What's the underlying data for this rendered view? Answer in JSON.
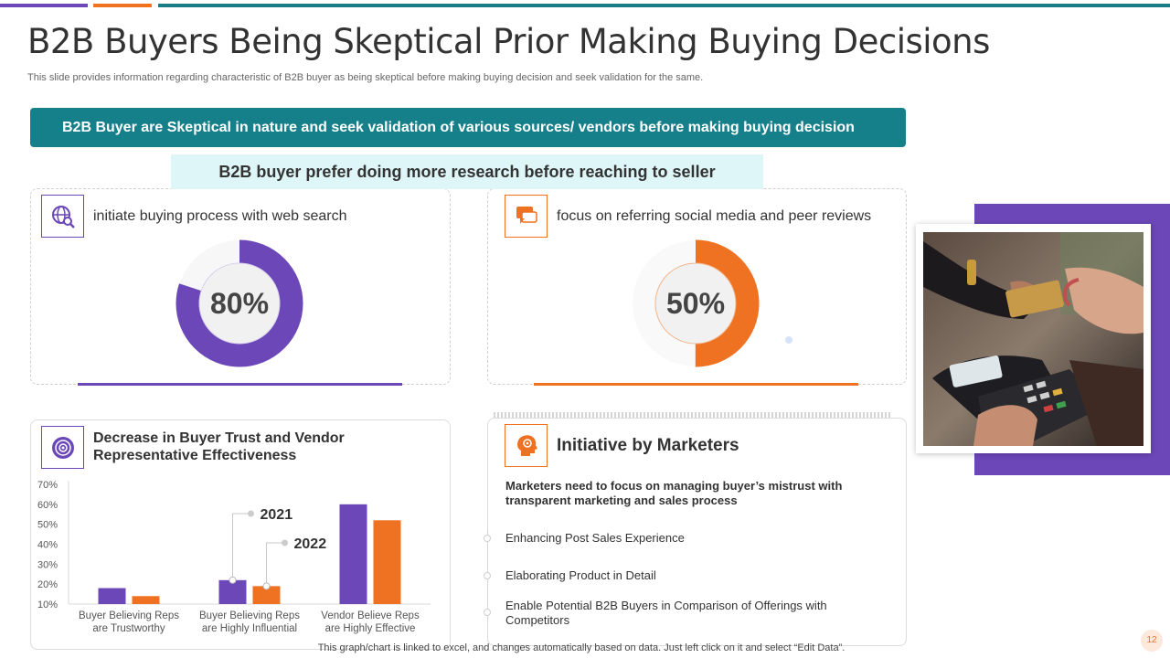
{
  "slide": {
    "title": "B2B Buyers Being Skeptical Prior Making Buying Decisions",
    "subtitle": "This slide provides information regarding characteristic of B2B buyer as being skeptical before making buying decision and seek validation for the same.",
    "banner": "B2B Buyer are Skeptical in nature and seek validation of various sources/ vendors before making buying decision",
    "sub_banner": "B2B buyer prefer doing more research before reaching to seller",
    "footer_note": "This graph/chart is linked to excel, and changes automatically based on data. Just left click on it and select “Edit Data”.",
    "page_number": "12"
  },
  "colors": {
    "purple": "#6c47b8",
    "orange": "#ef7222",
    "teal": "#16808a",
    "light_teal": "#dff6f8"
  },
  "stat_cards": [
    {
      "label": "initiate buying process with web search",
      "value_text": "80%",
      "percent": 80,
      "icon": "web-search-icon",
      "color": "#6c47b8"
    },
    {
      "label": "focus on referring social media and peer reviews",
      "value_text": "50%",
      "percent": 50,
      "icon": "chat-review-icon",
      "color": "#ef7222"
    }
  ],
  "chart_panel": {
    "heading": "Decrease in Buyer Trust and Vendor Representative  Effectiveness",
    "icon": "target-icon"
  },
  "chart_data": {
    "type": "bar",
    "title": "Decrease in Buyer Trust and Vendor Representative Effectiveness",
    "categories": [
      "Buyer Believing Reps are Trustworthy",
      "Buyer Believing Reps are Highly Influential",
      "Vendor Believe Reps are Highly Effective"
    ],
    "category_lines": [
      [
        "Buyer Believing Reps",
        "are Trustworthy"
      ],
      [
        "Buyer Believing Reps",
        "are Highly Influential"
      ],
      [
        "Vendor Believe Reps",
        "are Highly Effective"
      ]
    ],
    "series": [
      {
        "name": "2021",
        "values": [
          18,
          22,
          60
        ],
        "color": "#6c47b8"
      },
      {
        "name": "2022",
        "values": [
          14,
          19,
          52
        ],
        "color": "#ef7222"
      }
    ],
    "yticks": [
      "10%",
      "20%",
      "30%",
      "40%",
      "50%",
      "60%",
      "70%"
    ],
    "ylim": [
      10,
      70
    ],
    "xlabel": "",
    "ylabel": ""
  },
  "initiative": {
    "title": "Initiative by Marketers",
    "icon": "marketer-head-icon",
    "description": "Marketers need to focus  on managing buyer’s mistrust  with transparent marketing and sales process",
    "items": [
      "Enhancing Post Sales Experience",
      "Elaborating  Product in Detail",
      "Enable Potential B2B Buyers in Comparison  of Offerings with Competitors"
    ]
  }
}
